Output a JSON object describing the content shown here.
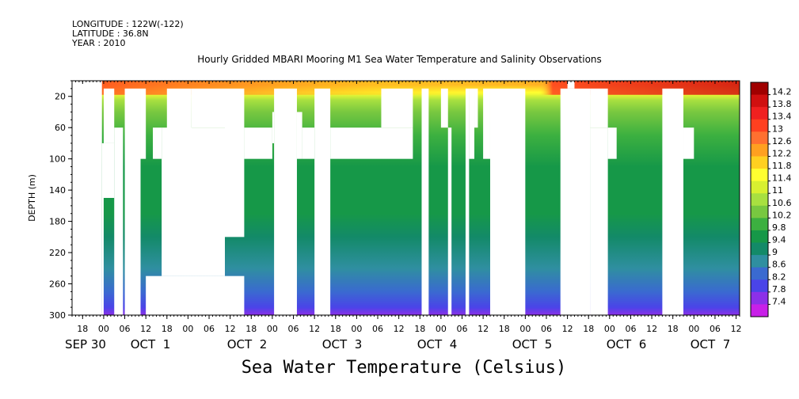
{
  "header": {
    "longitude": "LONGITUDE : 122W(-122)",
    "latitude": "LATITUDE : 36.8N",
    "year": "YEAR : 2010"
  },
  "chart_data": {
    "type": "heatmap",
    "title": "Hourly Gridded MBARI Mooring M1 Sea Water Temperature and Salinity Observations",
    "xlabel": "Sea Water Temperature (Celsius)",
    "ylabel": "DEPTH (m)",
    "y_axis": {
      "range": [
        0,
        300
      ],
      "inverted": true,
      "ticks": [
        20,
        60,
        100,
        140,
        180,
        220,
        260,
        300
      ]
    },
    "x_axis": {
      "range_hours": [
        -9,
        181
      ],
      "hour_ticks": [
        "18",
        "00",
        "06",
        "12",
        "18",
        "00",
        "06",
        "12",
        "18",
        "00",
        "06",
        "12",
        "18",
        "00",
        "06",
        "12",
        "18",
        "00",
        "06",
        "12",
        "18",
        "00",
        "06",
        "12",
        "18",
        "00",
        "06",
        "12",
        "18",
        "00",
        "06",
        "12"
      ],
      "day_labels": [
        "SEP 30",
        "OCT  1",
        "OCT  2",
        "OCT  3",
        "OCT  4",
        "OCT  5",
        "OCT  6",
        "OCT  7"
      ]
    },
    "colorbar": {
      "labels": [
        "14.2",
        "13.8",
        "13.4",
        "13",
        "12.6",
        "12.2",
        "11.8",
        "11.4",
        "11",
        "10.6",
        "10.2",
        "9.8",
        "9.4",
        "9",
        "8.6",
        "8.2",
        "7.8",
        "7.4"
      ],
      "colors": [
        "#a00000",
        "#d01010",
        "#f02020",
        "#ff4020",
        "#ff7030",
        "#ffa020",
        "#ffd020",
        "#ffff30",
        "#d8f030",
        "#a8e040",
        "#78c840",
        "#3cb040",
        "#169848",
        "#138a68",
        "#2f8fa0",
        "#3a6ad0",
        "#4a44e8",
        "#8c30e8",
        "#c820e8"
      ]
    },
    "temperature_profile": [
      {
        "depth": 5,
        "value": 12.2
      },
      {
        "depth": 15,
        "value": 11.4
      },
      {
        "depth": 25,
        "value": 10.6
      },
      {
        "depth": 40,
        "value": 10.2
      },
      {
        "depth": 70,
        "value": 9.8
      },
      {
        "depth": 110,
        "value": 9.4
      },
      {
        "depth": 170,
        "value": 9.4
      },
      {
        "depth": 200,
        "value": 9
      },
      {
        "depth": 240,
        "value": 8.6
      },
      {
        "depth": 270,
        "value": 8.2
      },
      {
        "depth": 290,
        "value": 7.8
      },
      {
        "depth": 300,
        "value": 7.4
      }
    ],
    "gaps": [
      {
        "h0": -9,
        "h1": -0.5,
        "d0": 0,
        "d1": 300
      },
      {
        "h0": 0,
        "h1": 3,
        "d0": 10,
        "d1": 80
      },
      {
        "h0": -0.5,
        "h1": 3,
        "d0": 80,
        "d1": 150
      },
      {
        "h0": -0.5,
        "h1": 0,
        "d0": 150,
        "d1": 300
      },
      {
        "h0": 3,
        "h1": 5.5,
        "d0": 60,
        "d1": 300
      },
      {
        "h0": 6,
        "h1": 10.5,
        "d0": 10,
        "d1": 300
      },
      {
        "h0": 10.5,
        "h1": 12,
        "d0": 10,
        "d1": 100
      },
      {
        "h0": 14,
        "h1": 16.5,
        "d0": 60,
        "d1": 100
      },
      {
        "h0": 18,
        "h1": 25,
        "d0": 10,
        "d1": 100
      },
      {
        "h0": 16.5,
        "h1": 34.5,
        "d0": 60,
        "d1": 250
      },
      {
        "h0": 12,
        "h1": 40,
        "d0": 250,
        "d1": 300
      },
      {
        "h0": 25,
        "h1": 34.5,
        "d0": 10,
        "d1": 60
      },
      {
        "h0": 34.5,
        "h1": 40,
        "d0": 10,
        "d1": 200
      },
      {
        "h0": 40,
        "h1": 48,
        "d0": 60,
        "d1": 100
      },
      {
        "h0": 48,
        "h1": 48.5,
        "d0": 40,
        "d1": 80
      },
      {
        "h0": 48.5,
        "h1": 55,
        "d0": 10,
        "d1": 300
      },
      {
        "h0": 55,
        "h1": 56.5,
        "d0": 40,
        "d1": 100
      },
      {
        "h0": 56.5,
        "h1": 60,
        "d0": 60,
        "d1": 100
      },
      {
        "h0": 60,
        "h1": 64.5,
        "d0": 10,
        "d1": 300
      },
      {
        "h0": 64.5,
        "h1": 88,
        "d0": 60,
        "d1": 100
      },
      {
        "h0": 79,
        "h1": 88,
        "d0": 10,
        "d1": 60
      },
      {
        "h0": 90.5,
        "h1": 92.5,
        "d0": 10,
        "d1": 300
      },
      {
        "h0": 96,
        "h1": 98,
        "d0": 10,
        "d1": 60
      },
      {
        "h0": 98,
        "h1": 99,
        "d0": 60,
        "d1": 300
      },
      {
        "h0": 103,
        "h1": 104,
        "d0": 10,
        "d1": 300
      },
      {
        "h0": 104,
        "h1": 105.5,
        "d0": 10,
        "d1": 100
      },
      {
        "h0": 105.5,
        "h1": 106.5,
        "d0": 10,
        "d1": 60
      },
      {
        "h0": 108,
        "h1": 110,
        "d0": 10,
        "d1": 100
      },
      {
        "h0": 110,
        "h1": 120,
        "d0": 10,
        "d1": 300
      },
      {
        "h0": 132,
        "h1": 134,
        "d0": 0,
        "d1": 10
      },
      {
        "h0": 130,
        "h1": 138.5,
        "d0": 10,
        "d1": 300
      },
      {
        "h0": 138.5,
        "h1": 143.5,
        "d0": 10,
        "d1": 60
      },
      {
        "h0": 143.5,
        "h1": 146,
        "d0": 60,
        "d1": 100
      },
      {
        "h0": 138.5,
        "h1": 143.5,
        "d0": 60,
        "d1": 300
      },
      {
        "h0": 159,
        "h1": 165,
        "d0": 10,
        "d1": 300
      },
      {
        "h0": 165,
        "h1": 168,
        "d0": 60,
        "d1": 100
      }
    ]
  }
}
